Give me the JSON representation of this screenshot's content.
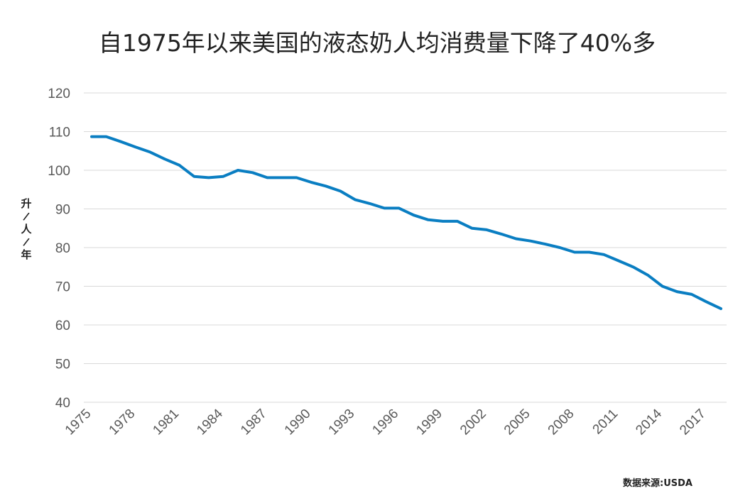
{
  "chart_data": {
    "type": "line",
    "title": "自1975年以来美国的液态奶人均消费量下降了40%多",
    "ylabel": "升/人/年",
    "xlabel": "",
    "source": "数据来源:USDA",
    "ylim": [
      40,
      120
    ],
    "yticks": [
      40,
      50,
      60,
      70,
      80,
      90,
      100,
      110,
      120
    ],
    "xticks": [
      "1975",
      "1978",
      "1981",
      "1984",
      "1987",
      "1990",
      "1993",
      "1996",
      "1999",
      "2002",
      "2005",
      "2008",
      "2011",
      "2014",
      "2017"
    ],
    "grid": true,
    "legend": "none",
    "line_color": "#0a7ec2",
    "x": [
      1975,
      1976,
      1977,
      1978,
      1979,
      1980,
      1981,
      1982,
      1983,
      1984,
      1985,
      1986,
      1987,
      1988,
      1989,
      1990,
      1991,
      1992,
      1993,
      1994,
      1995,
      1996,
      1997,
      1998,
      1999,
      2000,
      2001,
      2002,
      2003,
      2004,
      2005,
      2006,
      2007,
      2008,
      2009,
      2010,
      2011,
      2012,
      2013,
      2014,
      2015,
      2016,
      2017,
      2018
    ],
    "values": [
      108.7,
      108.7,
      107.4,
      106.0,
      104.7,
      102.9,
      101.3,
      98.4,
      98.1,
      98.4,
      100.0,
      99.4,
      98.1,
      98.1,
      98.1,
      96.9,
      95.9,
      94.6,
      92.4,
      91.4,
      90.2,
      90.2,
      88.4,
      87.2,
      86.8,
      86.8,
      85.0,
      84.6,
      83.5,
      82.3,
      81.7,
      80.9,
      80.0,
      78.8,
      78.8,
      78.2,
      76.6,
      75.0,
      72.9,
      70.0,
      68.6,
      67.9,
      66.0,
      64.2
    ]
  }
}
